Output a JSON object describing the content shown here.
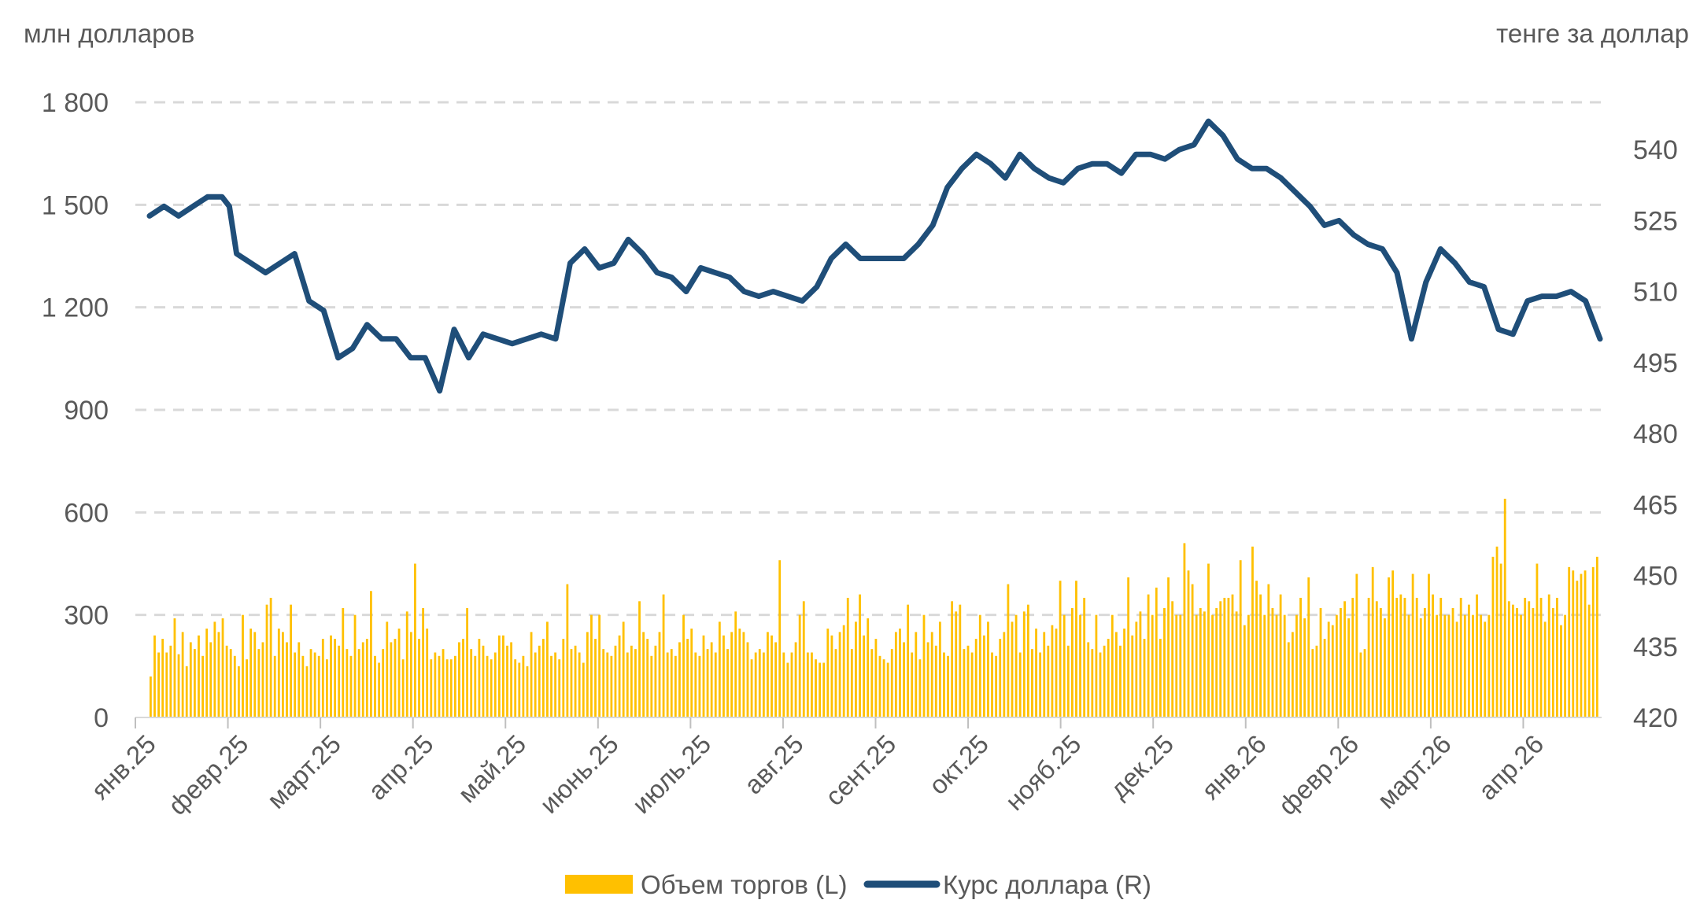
{
  "chart_data": {
    "type": "bar+line",
    "left_axis_title": "млн долларов",
    "right_axis_title": "тенге за доллар",
    "left_ticks": [
      0,
      300,
      600,
      900,
      1200,
      1500,
      1800
    ],
    "right_ticks": [
      420,
      435,
      450,
      465,
      480,
      495,
      510,
      525,
      540
    ],
    "ylim_left": [
      0,
      1800
    ],
    "ylim_right": [
      420,
      550
    ],
    "months": [
      "янв.25",
      "февр.25",
      "март.25",
      "апр.25",
      "май.25",
      "июнь.25",
      "июль.25",
      "авг.25",
      "сент.25",
      "окт.25",
      "нояб.25",
      "дек.25",
      "янв.26",
      "февр.26",
      "март.26",
      "апр.26"
    ],
    "grid": "horizontal dashed",
    "legend_position": "bottom",
    "colors": {
      "bars": "#FFC000",
      "line": "#1F4E79",
      "grid": "#D9D9D9",
      "text": "#595959"
    },
    "series": [
      {
        "name": "Объем торгов (L)",
        "type": "bar",
        "axis": "left",
        "values": [
          120,
          240,
          190,
          230,
          190,
          210,
          290,
          185,
          250,
          150,
          220,
          200,
          240,
          180,
          260,
          220,
          280,
          250,
          290,
          210,
          200,
          180,
          150,
          300,
          170,
          260,
          250,
          200,
          220,
          330,
          350,
          180,
          260,
          250,
          220,
          330,
          190,
          220,
          180,
          150,
          200,
          190,
          180,
          230,
          170,
          240,
          230,
          210,
          320,
          200,
          180,
          300,
          200,
          220,
          230,
          370,
          180,
          160,
          200,
          280,
          220,
          230,
          260,
          170,
          310,
          250,
          450,
          230,
          320,
          260,
          170,
          190,
          180,
          200,
          170,
          170,
          180,
          220,
          230,
          320,
          200,
          180,
          230,
          210,
          180,
          170,
          190,
          240,
          240,
          210,
          220,
          170,
          160,
          180,
          150,
          250,
          190,
          210,
          230,
          280,
          180,
          190,
          170,
          230,
          390,
          200,
          210,
          190,
          160,
          250,
          300,
          230,
          300,
          200,
          190,
          180,
          210,
          240,
          280,
          190,
          210,
          200,
          340,
          250,
          230,
          180,
          210,
          250,
          360,
          190,
          200,
          180,
          220,
          300,
          230,
          260,
          190,
          180,
          240,
          200,
          220,
          190,
          280,
          240,
          200,
          250,
          310,
          260,
          250,
          220,
          170,
          190,
          200,
          190,
          250,
          240,
          220,
          460,
          190,
          160,
          190,
          220,
          300,
          340,
          190,
          190,
          170,
          160,
          160,
          260,
          240,
          200,
          250,
          270,
          350,
          200,
          280,
          360,
          240,
          290,
          200,
          230,
          180,
          170,
          160,
          200,
          250,
          260,
          220,
          330,
          190,
          250,
          170,
          300,
          220,
          250,
          210,
          280,
          190,
          180,
          340,
          310,
          330,
          200,
          210,
          190,
          230,
          300,
          240,
          280,
          190,
          180,
          230,
          250,
          390,
          280,
          300,
          190,
          310,
          330,
          200,
          260,
          190,
          250,
          210,
          270,
          260,
          400,
          300,
          210,
          320,
          400,
          300,
          350,
          220,
          200,
          300,
          190,
          210,
          230,
          300,
          250,
          210,
          260,
          410,
          240,
          280,
          310,
          230,
          360,
          300,
          380,
          230,
          320,
          410,
          340,
          300,
          300,
          510,
          430,
          390,
          300,
          320,
          310,
          450,
          300,
          320,
          340,
          350,
          350,
          360,
          310,
          460,
          270,
          300,
          500,
          400,
          360,
          300,
          390,
          320,
          300,
          360,
          300,
          220,
          250,
          300,
          350,
          290,
          410,
          200,
          210,
          320,
          230,
          280,
          270,
          300,
          320,
          340,
          290,
          350,
          420,
          190,
          200,
          350,
          440,
          340,
          320,
          290,
          410,
          430,
          350,
          360,
          350,
          300,
          420,
          350,
          290,
          320,
          420,
          360,
          300,
          350,
          300,
          300,
          320,
          280,
          350,
          300,
          330,
          300,
          360,
          300,
          280,
          300,
          470,
          500,
          450,
          640,
          340,
          330,
          320,
          300,
          350,
          340,
          320,
          450,
          350,
          280,
          360,
          320,
          350,
          270,
          300,
          440,
          430,
          400,
          420,
          430,
          330,
          440,
          470
        ]
      },
      {
        "name": "Курс доллара (R)",
        "type": "line",
        "axis": "right",
        "points": [
          [
            0.0,
            526
          ],
          [
            0.01,
            528
          ],
          [
            0.02,
            526
          ],
          [
            0.03,
            528
          ],
          [
            0.04,
            530
          ],
          [
            0.05,
            530
          ],
          [
            0.055,
            528
          ],
          [
            0.06,
            518
          ],
          [
            0.07,
            516
          ],
          [
            0.08,
            514
          ],
          [
            0.09,
            516
          ],
          [
            0.1,
            518
          ],
          [
            0.11,
            508
          ],
          [
            0.12,
            506
          ],
          [
            0.13,
            496
          ],
          [
            0.14,
            498
          ],
          [
            0.15,
            503
          ],
          [
            0.16,
            500
          ],
          [
            0.17,
            500
          ],
          [
            0.18,
            496
          ],
          [
            0.19,
            496
          ],
          [
            0.2,
            489
          ],
          [
            0.21,
            502
          ],
          [
            0.22,
            496
          ],
          [
            0.23,
            501
          ],
          [
            0.24,
            500
          ],
          [
            0.25,
            499
          ],
          [
            0.26,
            500
          ],
          [
            0.27,
            501
          ],
          [
            0.28,
            500
          ],
          [
            0.29,
            516
          ],
          [
            0.3,
            519
          ],
          [
            0.31,
            515
          ],
          [
            0.32,
            516
          ],
          [
            0.33,
            521
          ],
          [
            0.34,
            518
          ],
          [
            0.35,
            514
          ],
          [
            0.36,
            513
          ],
          [
            0.37,
            510
          ],
          [
            0.38,
            515
          ],
          [
            0.39,
            514
          ],
          [
            0.4,
            513
          ],
          [
            0.41,
            510
          ],
          [
            0.42,
            509
          ],
          [
            0.43,
            510
          ],
          [
            0.44,
            509
          ],
          [
            0.45,
            508
          ],
          [
            0.46,
            511
          ],
          [
            0.47,
            517
          ],
          [
            0.48,
            520
          ],
          [
            0.49,
            517
          ],
          [
            0.5,
            517
          ],
          [
            0.51,
            517
          ],
          [
            0.52,
            517
          ],
          [
            0.53,
            520
          ],
          [
            0.54,
            524
          ],
          [
            0.55,
            532
          ],
          [
            0.56,
            536
          ],
          [
            0.57,
            539
          ],
          [
            0.58,
            537
          ],
          [
            0.59,
            534
          ],
          [
            0.6,
            539
          ],
          [
            0.61,
            536
          ],
          [
            0.62,
            534
          ],
          [
            0.63,
            533
          ],
          [
            0.64,
            536
          ],
          [
            0.65,
            537
          ],
          [
            0.66,
            537
          ],
          [
            0.67,
            535
          ],
          [
            0.68,
            539
          ],
          [
            0.69,
            539
          ],
          [
            0.7,
            538
          ],
          [
            0.71,
            540
          ],
          [
            0.72,
            541
          ],
          [
            0.73,
            546
          ],
          [
            0.74,
            543
          ],
          [
            0.75,
            538
          ],
          [
            0.76,
            536
          ],
          [
            0.77,
            536
          ],
          [
            0.78,
            534
          ],
          [
            0.79,
            531
          ],
          [
            0.8,
            528
          ],
          [
            0.81,
            524
          ],
          [
            0.82,
            525
          ],
          [
            0.83,
            522
          ],
          [
            0.84,
            520
          ],
          [
            0.85,
            519
          ],
          [
            0.86,
            514
          ],
          [
            0.87,
            500
          ],
          [
            0.88,
            512
          ],
          [
            0.89,
            519
          ],
          [
            0.9,
            516
          ],
          [
            0.91,
            512
          ],
          [
            0.92,
            511
          ],
          [
            0.93,
            502
          ],
          [
            0.94,
            501
          ],
          [
            0.95,
            508
          ],
          [
            0.96,
            509
          ],
          [
            0.97,
            509
          ],
          [
            0.98,
            510
          ],
          [
            0.99,
            508
          ],
          [
            1.0,
            500
          ]
        ]
      }
    ]
  }
}
